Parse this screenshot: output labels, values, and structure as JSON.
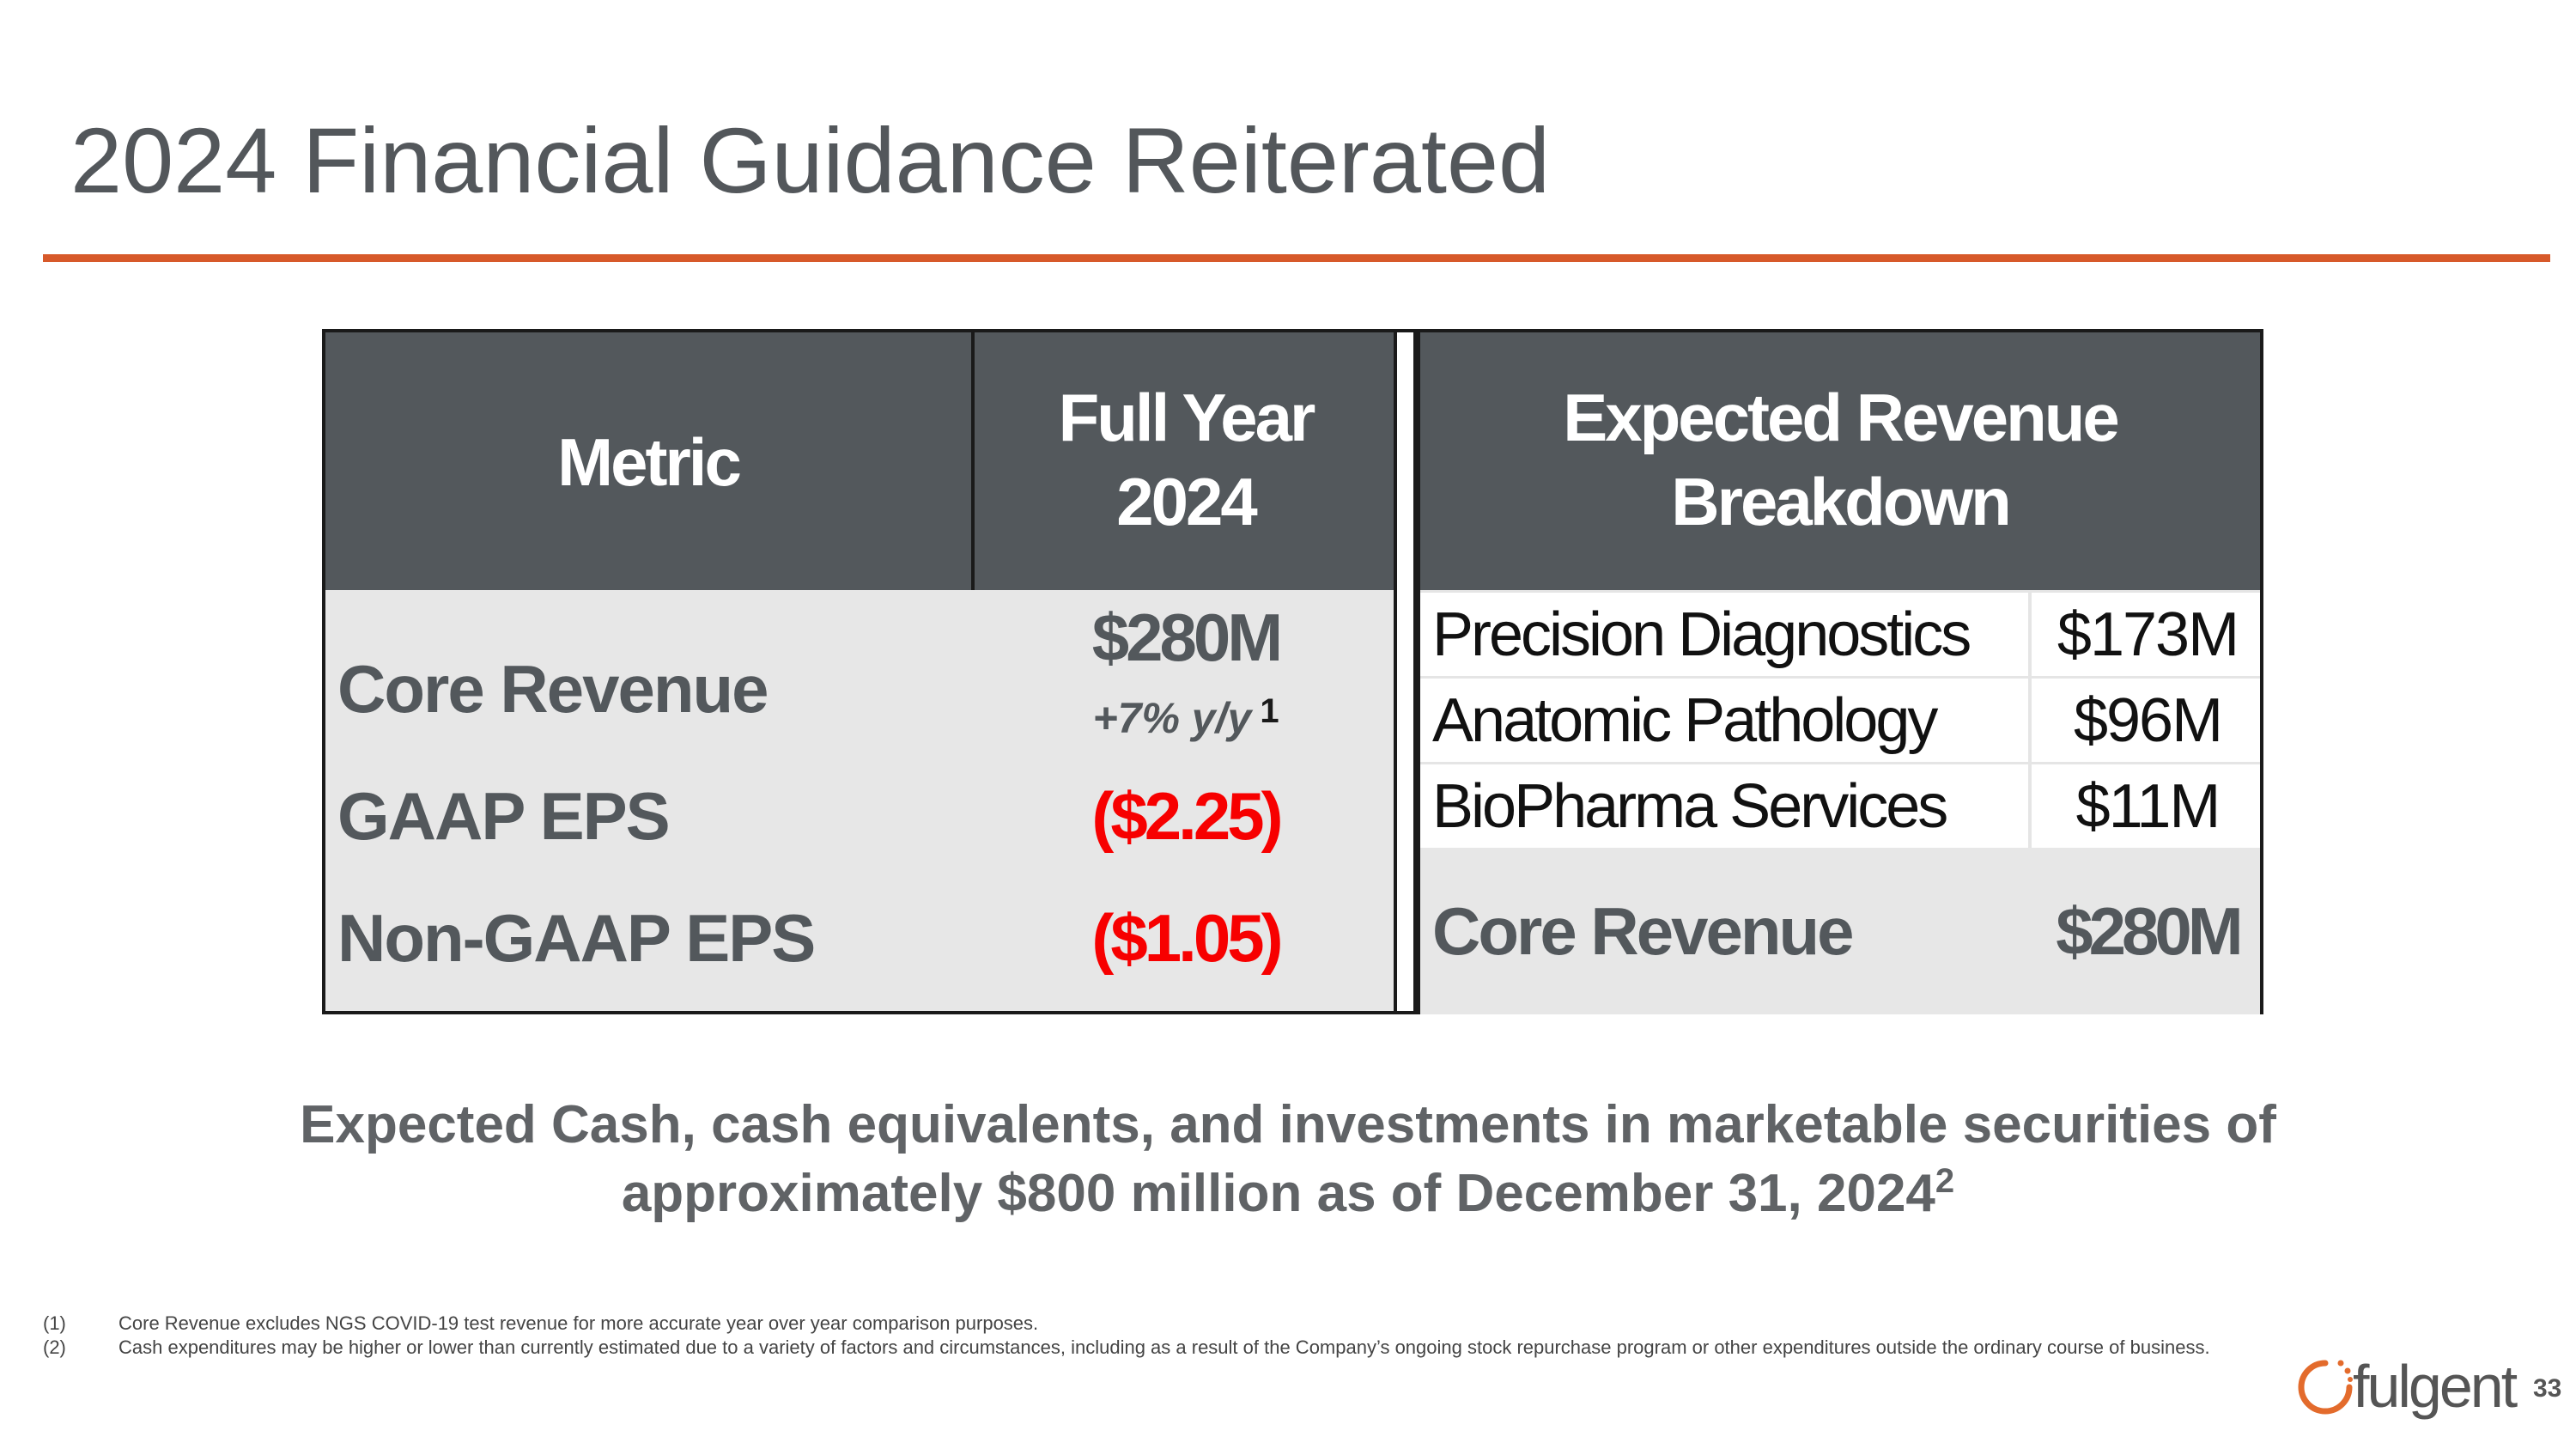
{
  "slide": {
    "title": "2024 Financial Guidance Reiterated",
    "page_number": "33"
  },
  "guidance_table": {
    "headers": {
      "metric": "Metric",
      "full_year_line1": "Full Year",
      "full_year_line2": "2024"
    },
    "rows": [
      {
        "label": "Core Revenue",
        "value": "$280M",
        "sub": "+7% y/y",
        "footnote_ref": "1"
      },
      {
        "label": "GAAP EPS",
        "value": "($2.25)"
      },
      {
        "label": "Non-GAAP EPS",
        "value": "($1.05)"
      }
    ]
  },
  "breakdown_table": {
    "header_line1": "Expected Revenue",
    "header_line2": "Breakdown",
    "rows": [
      {
        "name": "Precision Diagnostics",
        "amount": "$173M"
      },
      {
        "name": "Anatomic Pathology",
        "amount": "$96M"
      },
      {
        "name": "BioPharma Services",
        "amount": "$11M"
      }
    ],
    "total": {
      "name": "Core Revenue",
      "amount": "$280M"
    }
  },
  "statement": {
    "line1": "Expected Cash, cash equivalents, and investments in marketable securities of",
    "line2": "approximately $800 million as of December 31, 2024",
    "footnote_ref": "2"
  },
  "footnotes": [
    {
      "num": "(1)",
      "text": "Core Revenue excludes NGS COVID-19 test revenue for more accurate year over year comparison purposes."
    },
    {
      "num": "(2)",
      "text": "Cash expenditures may be higher or lower than currently estimated due to a variety of factors and circumstances, including as a result of the Company’s ongoing stock repurchase program or other expenditures outside the ordinary course of business."
    }
  ],
  "logo": {
    "text": "fulgent",
    "icon": "fulgent-ring-icon"
  },
  "colors": {
    "accent_rule": "#d7592a",
    "header_bg": "#53585c",
    "negative": "#f70000",
    "body_bg": "#e7e7e7"
  }
}
